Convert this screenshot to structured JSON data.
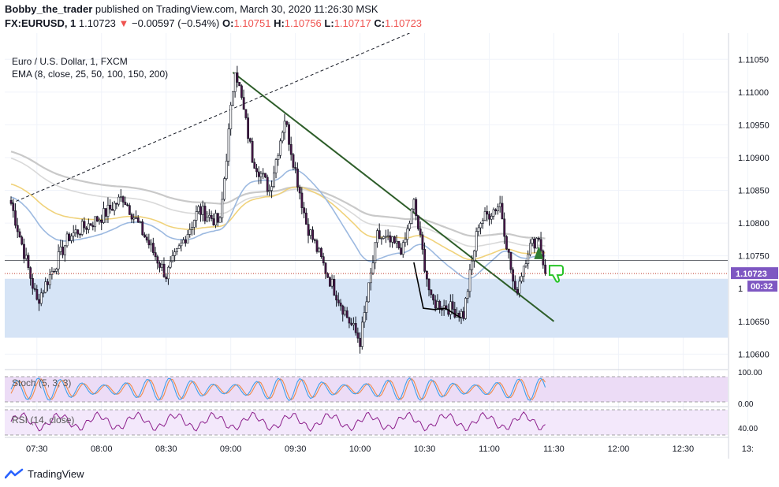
{
  "header": {
    "author": "Bobby_the_trader",
    "published": "published on TradingView.com, March 30, 2020 11:26:30 MSK",
    "symbol": "FX:EURUSD, 1",
    "last": "1.10723",
    "change_arrow": "▼",
    "change": "−0.00597 (−0.54%)",
    "o_label": "O:",
    "o": "1.10751",
    "h_label": "H:",
    "h": "1.10756",
    "l_label": "L:",
    "l": "1.10717",
    "c_label": "C:",
    "c": "1.10723"
  },
  "legend": {
    "title": "Euro / U.S. Dollar, 1, FXCM",
    "ema": "EMA (8, close, 25, 50, 100, 150, 200)"
  },
  "price_axis": {
    "ticks": [
      "1.11050",
      "1.11000",
      "1.10950",
      "1.10900",
      "1.10850",
      "1.10800",
      "1.10750",
      "1.10650",
      "1.10600"
    ],
    "last_label": "1.10723",
    "countdown": "00:32",
    "hidden_tick_fragment": "1"
  },
  "time_axis": {
    "ticks": [
      "07:30",
      "08:00",
      "08:30",
      "09:00",
      "09:30",
      "10:00",
      "10:30",
      "11:00",
      "11:30",
      "12:00",
      "12:30",
      "13:"
    ]
  },
  "stoch": {
    "label": "Stoch (5, 3, 3)",
    "ticks": [
      "100.00",
      "0.00"
    ]
  },
  "rsi": {
    "label": "RSI (14, close)",
    "ticks": [
      "40.00"
    ]
  },
  "footer": {
    "brand": "TradingView",
    "logo_icon": "tradingview-logo-icon"
  },
  "colors": {
    "up": "#ffffff",
    "down": "#4a1448",
    "wick": "#131722",
    "trend": "#2e5e2a",
    "zone": "#d6e4f6",
    "last_price": "#7e57c2",
    "ema_gray": "#c9c9c9",
    "ema_yellow": "#f0d27a",
    "ema_blue": "#9cb9e0",
    "stoch_bg": "#ecdcf6",
    "stoch_k": "#3ea0ec",
    "stoch_d": "#f08a4b",
    "rsi_bg": "#f3e8fb",
    "rsi_line": "#8c1f8c"
  },
  "chart_data": {
    "type": "candlestick",
    "title": "Euro / U.S. Dollar, 1, FXCM",
    "x": "time (1-minute bars, 07:18 to 11:26)",
    "time_ticks": [
      "07:30",
      "08:00",
      "08:30",
      "09:00",
      "09:30",
      "10:00",
      "10:30",
      "11:00",
      "11:30",
      "12:00",
      "12:30"
    ],
    "ylim": [
      1.1058,
      1.1109
    ],
    "key_points": [
      {
        "t": "07:18",
        "p": 1.1083
      },
      {
        "t": "07:30",
        "p": 1.1068
      },
      {
        "t": "07:45",
        "p": 1.1078
      },
      {
        "t": "08:00",
        "p": 1.1081
      },
      {
        "t": "08:10",
        "p": 1.1084
      },
      {
        "t": "08:30",
        "p": 1.1072
      },
      {
        "t": "08:45",
        "p": 1.1082
      },
      {
        "t": "08:55",
        "p": 1.108
      },
      {
        "t": "09:02",
        "p": 1.1104
      },
      {
        "t": "09:10",
        "p": 1.109
      },
      {
        "t": "09:18",
        "p": 1.1085
      },
      {
        "t": "09:25",
        "p": 1.1096
      },
      {
        "t": "09:35",
        "p": 1.108
      },
      {
        "t": "09:45",
        "p": 1.1072
      },
      {
        "t": "09:55",
        "p": 1.1065
      },
      {
        "t": "10:00",
        "p": 1.1062
      },
      {
        "t": "10:08",
        "p": 1.1078
      },
      {
        "t": "10:20",
        "p": 1.1076
      },
      {
        "t": "10:25",
        "p": 1.1083
      },
      {
        "t": "10:33",
        "p": 1.1068
      },
      {
        "t": "10:42",
        "p": 1.1067
      },
      {
        "t": "10:48",
        "p": 1.1066
      },
      {
        "t": "10:55",
        "p": 1.108
      },
      {
        "t": "11:05",
        "p": 1.1083
      },
      {
        "t": "11:12",
        "p": 1.1069
      },
      {
        "t": "11:18",
        "p": 1.1076
      },
      {
        "t": "11:23",
        "p": 1.1078
      },
      {
        "t": "11:26",
        "p": 1.10723
      }
    ],
    "ema_levels": {
      "gray_start": 1.1091,
      "yellow_start": 1.1086,
      "blue_start": 1.1084
    },
    "support_zone": [
      1.10625,
      1.10715
    ],
    "last_price": 1.10723,
    "trendline": {
      "from": {
        "t": "09:01",
        "p": 1.1103
      },
      "to": {
        "t": "11:30",
        "p": 1.1065
      }
    },
    "dashed_line": {
      "from": {
        "t": "07:18",
        "p": 1.1083
      },
      "to": {
        "t": "10:23",
        "p": 1.1109
      }
    },
    "stoch": {
      "range": [
        0,
        100
      ]
    },
    "rsi": {
      "visible_tick": 40
    }
  }
}
